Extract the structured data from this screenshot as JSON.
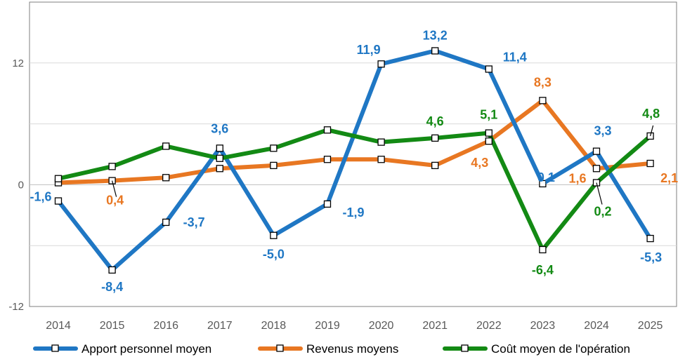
{
  "chart_data": {
    "type": "line",
    "title": "",
    "xlabel": "",
    "ylabel": "",
    "ylim": [
      -12,
      18
    ],
    "yticks": [
      -12,
      0,
      12
    ],
    "ytick_labels": [
      "-12",
      "0",
      "12"
    ],
    "grid": true,
    "legend_position": "bottom",
    "categories": [
      "2014",
      "2015",
      "2016",
      "2017",
      "2018",
      "2019",
      "2020",
      "2021",
      "2022",
      "2023",
      "2024",
      "2025"
    ],
    "series": [
      {
        "name": "Apport personnel moyen",
        "color": "#1f77c4",
        "values": [
          -1.6,
          -8.4,
          -3.7,
          3.6,
          -5.0,
          -1.9,
          11.9,
          13.2,
          11.4,
          0.1,
          3.3,
          -5.3
        ],
        "labels": [
          "-1,6",
          "-8,4",
          "-3,7",
          "3,6",
          "-5,0",
          "-1,9",
          "11,9",
          "13,2",
          "11,4",
          "0,1",
          "3,3",
          "-5,3"
        ]
      },
      {
        "name": "Revenus moyens",
        "color": "#e87722",
        "values": [
          0.2,
          0.4,
          0.7,
          1.6,
          1.9,
          2.5,
          2.5,
          1.9,
          4.3,
          8.3,
          1.6,
          2.1
        ],
        "labels": [
          "",
          "0,4",
          "",
          "",
          "",
          "",
          "",
          "",
          "4,3",
          "8,3",
          "1,6",
          "2,1"
        ]
      },
      {
        "name": "Coût moyen de l'opération",
        "color": "#138a14",
        "values": [
          0.6,
          1.8,
          3.8,
          2.6,
          3.6,
          5.4,
          4.2,
          4.6,
          5.1,
          -6.4,
          0.2,
          4.8
        ],
        "labels": [
          "",
          "",
          "",
          "",
          "",
          "",
          "",
          "4,6",
          "5,1",
          "-6,4",
          "0,2",
          "4,8"
        ]
      }
    ]
  }
}
